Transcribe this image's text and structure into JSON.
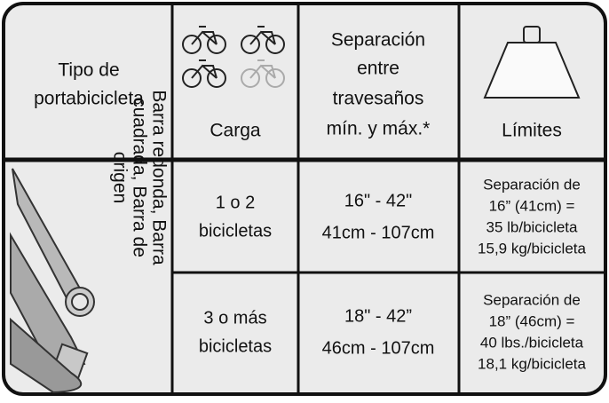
{
  "header": {
    "columns": [
      {
        "lines": [
          "Tipo de",
          "portabicicleta"
        ]
      },
      {
        "lines": [
          "Carga"
        ]
      },
      {
        "lines": [
          "Separación",
          "entre",
          "travesaños",
          "mín. y máx.*"
        ]
      },
      {
        "lines": [
          "Límites"
        ]
      }
    ]
  },
  "rack_types": {
    "lines": [
      "Barra redonda, Barra",
      "cuadrada, Barra de",
      "origen"
    ]
  },
  "rows": [
    {
      "load": [
        "1 o 2",
        "bicicletas"
      ],
      "spacing": [
        "16\" - 42\"",
        "41cm - 107cm"
      ],
      "limits": [
        "Separación de",
        "16” (41cm) =",
        "35 lb/bicicleta",
        "15,9 kg/bicicleta"
      ]
    },
    {
      "load": [
        "3 o más",
        "bicicletas"
      ],
      "spacing": [
        "18\" - 42”",
        "46cm - 107cm"
      ],
      "limits": [
        "Separación de",
        "18” (46cm) =",
        "40 lbs./bicicleta",
        "18,1 kg/bicicleta"
      ]
    }
  ]
}
